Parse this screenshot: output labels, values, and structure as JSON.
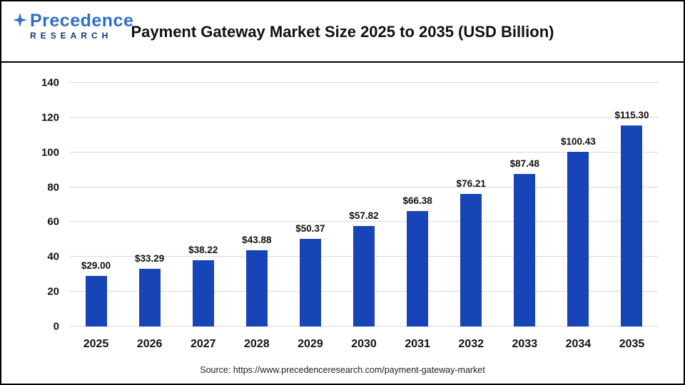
{
  "header": {
    "logo_line1": "Precedence",
    "logo_line2": "RESEARCH",
    "title": "Payment Gateway Market Size 2025 to 2035 (USD Billion)"
  },
  "footer": {
    "source": "Source: https://www.precedenceresearch.com/payment-gateway-market"
  },
  "colors": {
    "bar": "#1745b8",
    "grid": "#d9d9d9",
    "logo_blue": "#2e6fc9",
    "logo_navy": "#16337e"
  },
  "chart_data": {
    "type": "bar",
    "title": "Payment Gateway Market Size 2025 to 2035 (USD Billion)",
    "categories": [
      "2025",
      "2026",
      "2027",
      "2028",
      "2029",
      "2030",
      "2031",
      "2032",
      "2033",
      "2034",
      "2035"
    ],
    "values": [
      29.0,
      33.29,
      38.22,
      43.88,
      50.37,
      57.82,
      66.38,
      76.21,
      87.48,
      100.43,
      115.3
    ],
    "labels": [
      "$29.00",
      "$33.29",
      "$38.22",
      "$43.88",
      "$50.37",
      "$57.82",
      "$66.38",
      "$76.21",
      "$87.48",
      "$100.43",
      "$115.30"
    ],
    "xlabel": "",
    "ylabel": "",
    "ylim": [
      0,
      140
    ],
    "yticks": [
      0,
      20,
      40,
      60,
      80,
      100,
      120,
      140
    ],
    "grid": true,
    "legend": "none"
  }
}
